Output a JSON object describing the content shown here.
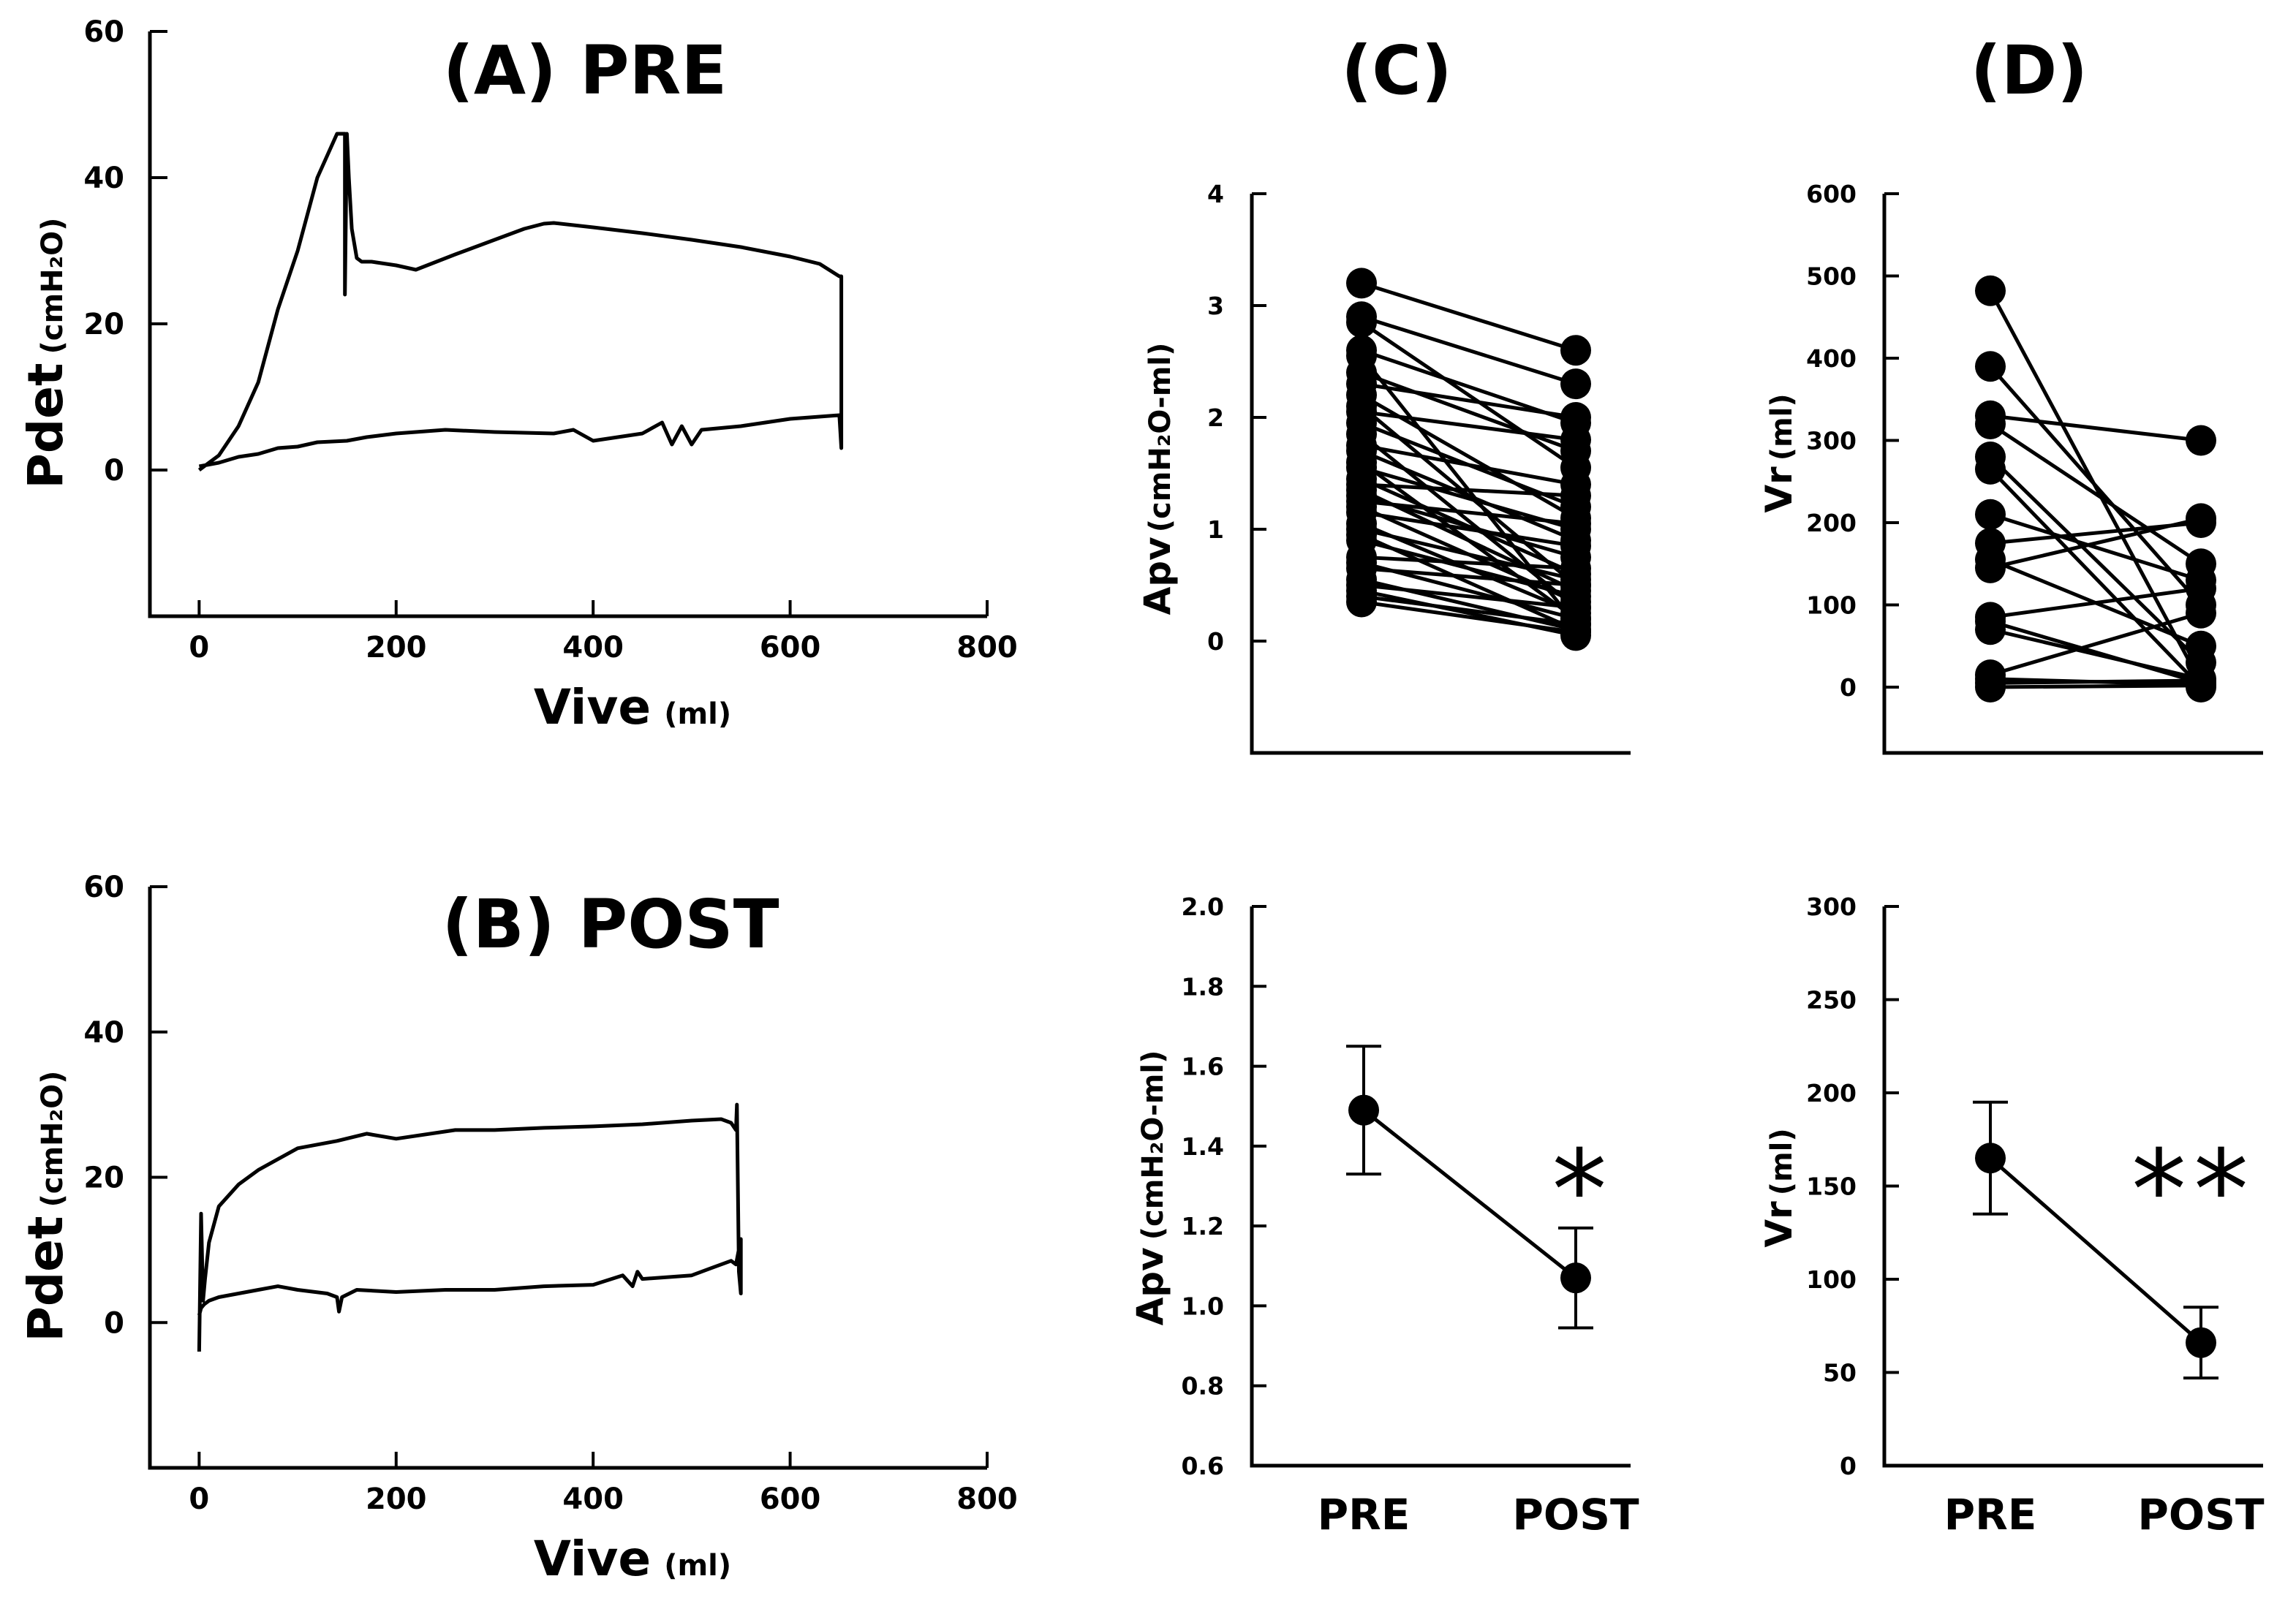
{
  "chart_data": [
    {
      "id": "A",
      "type": "line",
      "title": "(A) PRE",
      "xlabel": "Vive",
      "xlabel_unit": "(ml)",
      "ylabel": "Pdet",
      "ylabel_unit": "(cmH₂O)",
      "xlim": [
        -50,
        800
      ],
      "ylim": [
        -20,
        60
      ],
      "xticks": [
        0,
        200,
        400,
        600,
        800
      ],
      "yticks": [
        0,
        20,
        40,
        60
      ],
      "grid": false,
      "series": [
        {
          "x": [
            0,
            20,
            40,
            60,
            80,
            100,
            120,
            140,
            148,
            148,
            150,
            152,
            155,
            160,
            165,
            170,
            175,
            180,
            200,
            220,
            260,
            300,
            330,
            350,
            360,
            400,
            450,
            500,
            550,
            600,
            630,
            650,
            652,
            652,
            650,
            600,
            550,
            510,
            500,
            490,
            480,
            470,
            450,
            400,
            380,
            360,
            300,
            250,
            200,
            170,
            150,
            120,
            100,
            80,
            60,
            40,
            20,
            0
          ],
          "y": [
            0,
            2,
            6,
            12,
            22,
            30,
            40,
            46,
            46,
            24,
            46,
            40,
            33,
            29,
            28.5,
            28.5,
            28.5,
            28.4,
            28,
            27.4,
            29.5,
            31.5,
            33,
            33.7,
            33.8,
            33.2,
            32.4,
            31.5,
            30.5,
            29.2,
            28.2,
            26.5,
            26.5,
            3,
            7.5,
            7,
            6,
            5.5,
            3.5,
            6,
            3.5,
            6.5,
            5,
            4,
            5.5,
            5,
            5.2,
            5.5,
            5,
            4.5,
            4,
            3.8,
            3.2,
            3,
            2.2,
            1.8,
            1,
            0.5
          ]
        }
      ]
    },
    {
      "id": "B",
      "type": "line",
      "title": "(B) POST",
      "xlabel": "Vive",
      "xlabel_unit": "(ml)",
      "ylabel": "Pdet",
      "ylabel_unit": "(cmH₂O)",
      "xlim": [
        -50,
        800
      ],
      "ylim": [
        -20,
        60
      ],
      "xticks": [
        0,
        200,
        400,
        600,
        800
      ],
      "yticks": [
        0,
        20,
        40,
        60
      ],
      "grid": false,
      "series": [
        {
          "x": [
            0,
            2,
            4,
            6,
            10,
            20,
            40,
            60,
            80,
            100,
            140,
            170,
            200,
            260,
            300,
            350,
            400,
            450,
            500,
            530,
            540,
            545,
            546,
            548,
            550,
            550,
            545,
            540,
            520,
            500,
            450,
            445,
            440,
            430,
            400,
            350,
            300,
            250,
            200,
            160,
            145,
            142,
            140,
            130,
            100,
            80,
            60,
            40,
            20,
            10,
            5,
            2,
            0
          ],
          "y": [
            -4,
            15,
            3,
            6,
            11,
            16,
            19,
            21,
            22.5,
            24,
            25,
            26,
            25.3,
            26.5,
            26.5,
            26.8,
            27,
            27.3,
            27.8,
            28,
            27.5,
            26.5,
            30,
            7,
            4,
            11.5,
            8,
            8.5,
            7.5,
            6.5,
            6,
            7,
            5,
            6.5,
            5.2,
            5,
            4.5,
            4.5,
            4.2,
            4.5,
            3.5,
            1.5,
            3.5,
            4,
            4.5,
            5,
            4.5,
            4,
            3.5,
            3,
            2.5,
            2,
            1
          ]
        }
      ]
    },
    {
      "id": "C",
      "type": "line",
      "title": "(C)",
      "ylabel": "Apv",
      "ylabel_unit": "(cmH₂O-ml)",
      "categories": [
        "PRE",
        "POST"
      ],
      "ylim": [
        -1,
        4
      ],
      "yticks": [
        0,
        1,
        2,
        3,
        4
      ],
      "show_categories": false,
      "paired": [
        [
          3.2,
          2.6
        ],
        [
          2.9,
          2.3
        ],
        [
          2.85,
          1.55
        ],
        [
          2.6,
          1.95
        ],
        [
          2.55,
          0.15
        ],
        [
          2.4,
          1.7
        ],
        [
          2.3,
          2.0
        ],
        [
          2.2,
          1.1
        ],
        [
          2.1,
          0.5
        ],
        [
          2.05,
          1.8
        ],
        [
          1.95,
          1.2
        ],
        [
          1.85,
          0.3
        ],
        [
          1.75,
          1.4
        ],
        [
          1.7,
          0.9
        ],
        [
          1.6,
          0.2
        ],
        [
          1.55,
          1.0
        ],
        [
          1.45,
          0.6
        ],
        [
          1.4,
          1.3
        ],
        [
          1.35,
          0.45
        ],
        [
          1.3,
          0.75
        ],
        [
          1.25,
          1.05
        ],
        [
          1.2,
          0.35
        ],
        [
          1.15,
          0.85
        ],
        [
          1.05,
          0.25
        ],
        [
          1.0,
          0.55
        ],
        [
          0.95,
          0.1
        ],
        [
          0.9,
          0.4
        ],
        [
          0.75,
          0.65
        ],
        [
          0.7,
          0.2
        ],
        [
          0.65,
          0.5
        ],
        [
          0.55,
          0.1
        ],
        [
          0.5,
          0.3
        ],
        [
          0.45,
          0.05
        ],
        [
          0.4,
          0.15
        ],
        [
          0.35,
          0.08
        ]
      ]
    },
    {
      "id": "D",
      "type": "line",
      "title": "(D)",
      "ylabel": "Vr",
      "ylabel_unit": "(ml)",
      "categories": [
        "PRE",
        "POST"
      ],
      "ylim": [
        -80,
        600
      ],
      "yticks": [
        0,
        100,
        200,
        300,
        400,
        500,
        600
      ],
      "show_categories": false,
      "paired": [
        [
          482,
          5
        ],
        [
          390,
          100
        ],
        [
          330,
          300
        ],
        [
          320,
          150
        ],
        [
          280,
          30
        ],
        [
          265,
          0
        ],
        [
          210,
          130
        ],
        [
          175,
          200
        ],
        [
          155,
          50
        ],
        [
          145,
          205
        ],
        [
          85,
          120
        ],
        [
          80,
          5
        ],
        [
          70,
          10
        ],
        [
          15,
          90
        ],
        [
          10,
          3
        ],
        [
          5,
          8
        ],
        [
          0,
          2
        ]
      ]
    },
    {
      "id": "C2",
      "type": "line",
      "title": "",
      "ylabel": "Apv",
      "ylabel_unit": "(cmH₂O-ml)",
      "categories": [
        "PRE",
        "POST"
      ],
      "ylim": [
        0.6,
        2.0
      ],
      "yticks": [
        0.6,
        0.8,
        1.0,
        1.2,
        1.4,
        1.6,
        1.8,
        2.0
      ],
      "ytick_format": "1dp",
      "show_categories": true,
      "series": [
        {
          "values": [
            1.49,
            1.07
          ],
          "errors": [
            0.16,
            0.125
          ]
        }
      ],
      "annotation": "*"
    },
    {
      "id": "D2",
      "type": "line",
      "title": "",
      "ylabel": "Vr",
      "ylabel_unit": "(ml)",
      "categories": [
        "PRE",
        "POST"
      ],
      "ylim": [
        0,
        300
      ],
      "yticks": [
        0,
        50,
        100,
        150,
        200,
        250,
        300
      ],
      "show_categories": true,
      "series": [
        {
          "values": [
            165,
            66
          ],
          "errors": [
            30,
            19
          ]
        }
      ],
      "annotation": "**"
    }
  ]
}
